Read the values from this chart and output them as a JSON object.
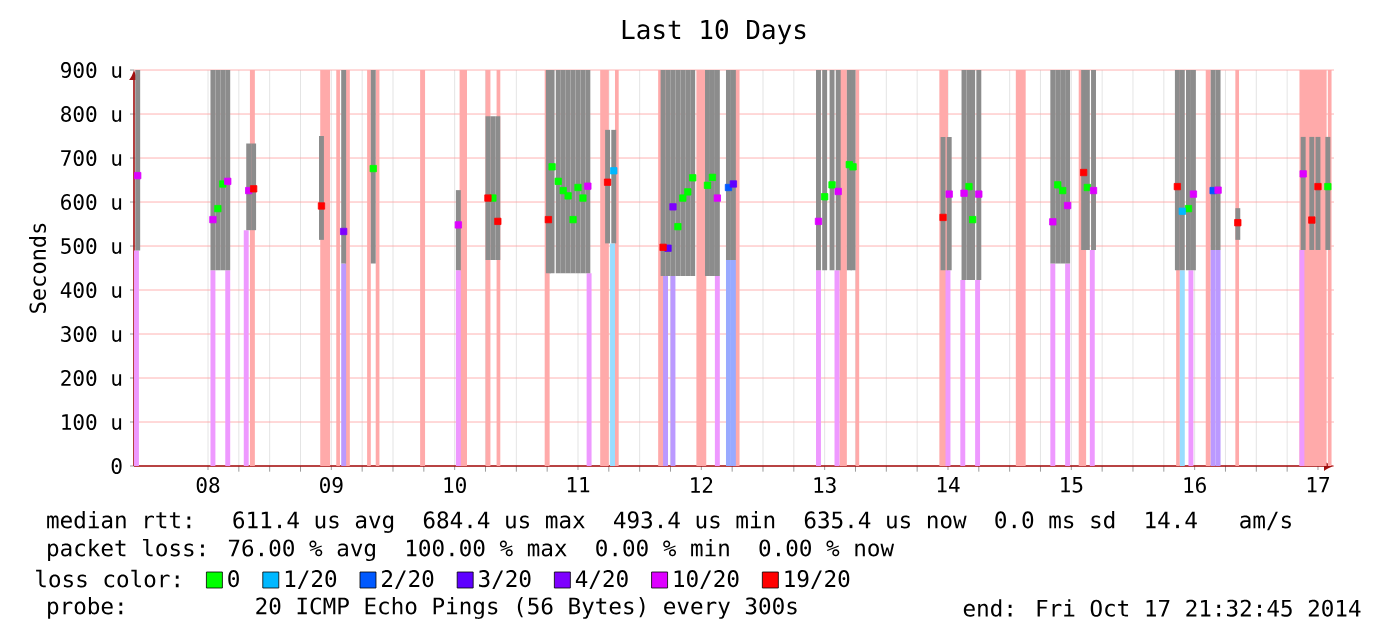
{
  "chart_data": {
    "type": "scatter",
    "title": "Last 10 Days",
    "ylabel": "Seconds",
    "legend_title": "loss color:",
    "legend": "bottom",
    "grid": true,
    "marker": "square",
    "xlim": [
      7.4,
      17.13
    ],
    "ylim": [
      0,
      900
    ],
    "xticks": [
      {
        "value": 8,
        "label": "08"
      },
      {
        "value": 9,
        "label": "09"
      },
      {
        "value": 10,
        "label": "10"
      },
      {
        "value": 11,
        "label": "11"
      },
      {
        "value": 12,
        "label": "12"
      },
      {
        "value": 13,
        "label": "13"
      },
      {
        "value": 14,
        "label": "14"
      },
      {
        "value": 15,
        "label": "15"
      },
      {
        "value": 16,
        "label": "16"
      },
      {
        "value": 17,
        "label": "17"
      }
    ],
    "yticks": [
      {
        "value": 0,
        "label": "0"
      },
      {
        "value": 100,
        "label": "100 u"
      },
      {
        "value": 200,
        "label": "200 u"
      },
      {
        "value": 300,
        "label": "300 u"
      },
      {
        "value": 400,
        "label": "400 u"
      },
      {
        "value": 500,
        "label": "500 u"
      },
      {
        "value": 600,
        "label": "600 u"
      },
      {
        "value": 700,
        "label": "700 u"
      },
      {
        "value": 800,
        "label": "800 u"
      },
      {
        "value": 900,
        "label": "900 u"
      }
    ],
    "bands": [
      {
        "axis": "x",
        "from": 8.34,
        "to": 8.38,
        "color": "#ffaaaa"
      },
      {
        "axis": "x",
        "from": 8.91,
        "to": 8.99,
        "color": "#ffaaaa"
      },
      {
        "axis": "x",
        "from": 9.04,
        "to": 9.07,
        "color": "#ffaaaa"
      },
      {
        "axis": "x",
        "from": 9.11,
        "to": 9.15,
        "color": "#ffaaaa"
      },
      {
        "axis": "x",
        "from": 9.29,
        "to": 9.32,
        "color": "#ffaaaa"
      },
      {
        "axis": "x",
        "from": 9.36,
        "to": 9.39,
        "color": "#ffaaaa"
      },
      {
        "axis": "x",
        "from": 9.72,
        "to": 9.76,
        "color": "#ffaaaa"
      },
      {
        "axis": "x",
        "from": 10.04,
        "to": 10.1,
        "color": "#ffaaaa"
      },
      {
        "axis": "x",
        "from": 10.25,
        "to": 10.29,
        "color": "#ffaaaa"
      },
      {
        "axis": "x",
        "from": 10.34,
        "to": 10.37,
        "color": "#ffaaaa"
      },
      {
        "axis": "x",
        "from": 10.73,
        "to": 10.77,
        "color": "#ffaaaa"
      },
      {
        "axis": "x",
        "from": 11.18,
        "to": 11.25,
        "color": "#ffaaaa"
      },
      {
        "axis": "x",
        "from": 11.3,
        "to": 11.33,
        "color": "#ffaaaa"
      },
      {
        "axis": "x",
        "from": 11.65,
        "to": 11.71,
        "color": "#ffaaaa"
      },
      {
        "axis": "x",
        "from": 11.96,
        "to": 12.04,
        "color": "#ffaaaa"
      },
      {
        "axis": "x",
        "from": 12.27,
        "to": 12.31,
        "color": "#ffaaaa"
      },
      {
        "axis": "x",
        "from": 13.12,
        "to": 13.18,
        "color": "#ffaaaa"
      },
      {
        "axis": "x",
        "from": 13.25,
        "to": 13.28,
        "color": "#ffaaaa"
      },
      {
        "axis": "x",
        "from": 13.93,
        "to": 14.0,
        "color": "#ffaaaa"
      },
      {
        "axis": "x",
        "from": 14.55,
        "to": 14.63,
        "color": "#ffaaaa"
      },
      {
        "axis": "x",
        "from": 15.06,
        "to": 15.12,
        "color": "#ffaaaa"
      },
      {
        "axis": "x",
        "from": 15.85,
        "to": 15.88,
        "color": "#ffaaaa"
      },
      {
        "axis": "x",
        "from": 16.09,
        "to": 16.13,
        "color": "#ffaaaa"
      },
      {
        "axis": "x",
        "from": 16.33,
        "to": 16.36,
        "color": "#ffaaaa"
      },
      {
        "axis": "x",
        "from": 16.85,
        "to": 17.07,
        "color": "#ffaaaa"
      },
      {
        "axis": "x",
        "from": 17.08,
        "to": 17.11,
        "color": "#ffaaaa"
      }
    ],
    "series": [
      {
        "type": "bar",
        "color": "#ee99ff",
        "x": [
          7.42,
          8.04,
          8.16,
          8.31,
          9.1,
          10.03,
          11.09,
          11.28,
          11.71,
          11.77,
          12.13,
          12.22,
          12.26,
          12.95,
          13.1,
          14.0,
          14.12,
          14.24,
          14.85,
          14.97,
          15.17,
          15.9,
          15.97,
          16.15,
          16.19,
          16.87
        ],
        "values": [
          490,
          445,
          445,
          536,
          460,
          445,
          438,
          506,
          432,
          432,
          432,
          468,
          468,
          445,
          445,
          445,
          423,
          423,
          460,
          460,
          491,
          445,
          445,
          491,
          491,
          491
        ],
        "colors": [
          "#ee99ff",
          "#ee99ff",
          "#ee99ff",
          "#ee99ff",
          "#bb99ff",
          "#ee99ff",
          "#ee99ff",
          "#99ddff",
          "#bb99ff",
          "#bb99ff",
          "#ee99ff",
          "#99aaff",
          "#99aaff",
          "#ee99ff",
          "#ee99ff",
          "#ee99ff",
          "#ee99ff",
          "#ee99ff",
          "#ee99ff",
          "#ee99ff",
          "#ee99ff",
          "#99ddff",
          "#ee99ff",
          "#bb99ff",
          "#bb99ff",
          "#ee99ff"
        ]
      },
      {
        "type": "bar",
        "color": "#8c8c8c",
        "x": [
          7.43,
          8.04,
          8.08,
          8.12,
          8.16,
          8.33,
          8.37,
          8.92,
          9.1,
          9.34,
          10.03,
          10.27,
          10.31,
          10.35,
          10.76,
          10.79,
          10.84,
          10.88,
          10.92,
          10.96,
          11.0,
          11.04,
          11.08,
          11.24,
          11.29,
          11.69,
          11.73,
          11.77,
          11.81,
          11.85,
          11.89,
          11.93,
          12.05,
          12.09,
          12.13,
          12.22,
          12.26,
          12.95,
          13.0,
          13.06,
          13.11,
          13.2,
          13.23,
          13.96,
          14.01,
          14.13,
          14.17,
          14.2,
          14.25,
          14.85,
          14.89,
          14.93,
          14.97,
          15.1,
          15.13,
          15.18,
          15.86,
          15.9,
          15.95,
          15.99,
          16.15,
          16.19,
          16.35,
          16.88,
          16.95,
          17.0,
          17.08
        ],
        "base": [
          490,
          445,
          445,
          445,
          445,
          536,
          536,
          514,
          460,
          460,
          445,
          468,
          468,
          468,
          438,
          438,
          438,
          438,
          438,
          438,
          438,
          438,
          438,
          506,
          506,
          432,
          432,
          432,
          432,
          432,
          432,
          432,
          432,
          432,
          432,
          468,
          468,
          445,
          445,
          445,
          445,
          445,
          445,
          445,
          445,
          423,
          423,
          423,
          423,
          460,
          460,
          460,
          460,
          491,
          491,
          491,
          445,
          445,
          445,
          445,
          491,
          491,
          514,
          491,
          491,
          491,
          491
        ],
        "values": [
          410,
          455,
          455,
          455,
          455,
          197,
          197,
          236,
          440,
          440,
          182,
          327,
          327,
          327,
          462,
          462,
          462,
          462,
          462,
          462,
          462,
          462,
          462,
          258,
          258,
          468,
          468,
          468,
          468,
          468,
          468,
          468,
          468,
          468,
          468,
          432,
          432,
          455,
          455,
          455,
          455,
          455,
          455,
          303,
          303,
          477,
          477,
          477,
          477,
          440,
          440,
          440,
          440,
          409,
          409,
          409,
          455,
          455,
          455,
          455,
          409,
          409,
          72,
          257,
          257,
          257,
          257
        ]
      },
      {
        "name": "0",
        "color": "#00ff00",
        "x": [
          8.08,
          8.12,
          9.34,
          10.31,
          10.79,
          10.84,
          10.88,
          10.92,
          10.96,
          11.0,
          11.04,
          11.81,
          11.85,
          11.89,
          11.93,
          12.05,
          12.09,
          13.0,
          13.06,
          13.2,
          13.23,
          14.17,
          14.2,
          14.89,
          14.93,
          15.13,
          15.95,
          17.08
        ],
        "values": [
          585,
          641,
          676,
          609,
          680,
          647,
          626,
          614,
          560,
          633,
          609,
          544,
          609,
          623,
          655,
          638,
          656,
          612,
          639,
          685,
          680,
          635,
          560,
          639,
          626,
          633,
          585,
          635
        ]
      },
      {
        "name": "1/20",
        "color": "#00b8ff",
        "x": [
          11.29,
          15.9
        ],
        "values": [
          671,
          579
        ]
      },
      {
        "name": "2/20",
        "color": "#0059ff",
        "x": [
          12.22,
          16.15
        ],
        "values": [
          633,
          626
        ]
      },
      {
        "name": "3/20",
        "color": "#5e00ff",
        "x": [
          11.73,
          12.26
        ],
        "values": [
          495,
          641
        ]
      },
      {
        "name": "4/20",
        "color": "#7e00ff",
        "x": [
          9.1,
          11.77
        ],
        "values": [
          533,
          589
        ]
      },
      {
        "name": "10/20",
        "color": "#dd00ff",
        "x": [
          7.43,
          8.04,
          8.16,
          8.33,
          10.03,
          11.08,
          12.13,
          12.95,
          13.11,
          14.01,
          14.13,
          14.25,
          14.85,
          14.97,
          15.18,
          15.99,
          16.19,
          16.88
        ],
        "values": [
          660,
          560,
          647,
          626,
          548,
          636,
          609,
          556,
          624,
          618,
          620,
          618,
          555,
          592,
          626,
          618,
          627,
          664
        ]
      },
      {
        "name": "19/20",
        "color": "#ff0000",
        "x": [
          8.37,
          8.92,
          10.27,
          10.35,
          10.76,
          11.24,
          11.69,
          13.96,
          15.1,
          15.86,
          16.35,
          16.95,
          17.0
        ],
        "values": [
          630,
          591,
          609,
          556,
          560,
          645,
          497,
          565,
          667,
          635,
          553,
          559,
          635
        ]
      }
    ],
    "annotations": [
      "median rtt:  611.4 us avg  684.4 us max  493.4 us min  635.4 us now  0.0 ms sd  14.4   am/s",
      "packet loss: 76.00 % avg  100.00 % max  0.00 % min  0.00 % now",
      "probe:       20 ICMP Echo Pings (56 Bytes) every 300s",
      "end: Fri Oct 17 21:32:45 2014"
    ]
  }
}
